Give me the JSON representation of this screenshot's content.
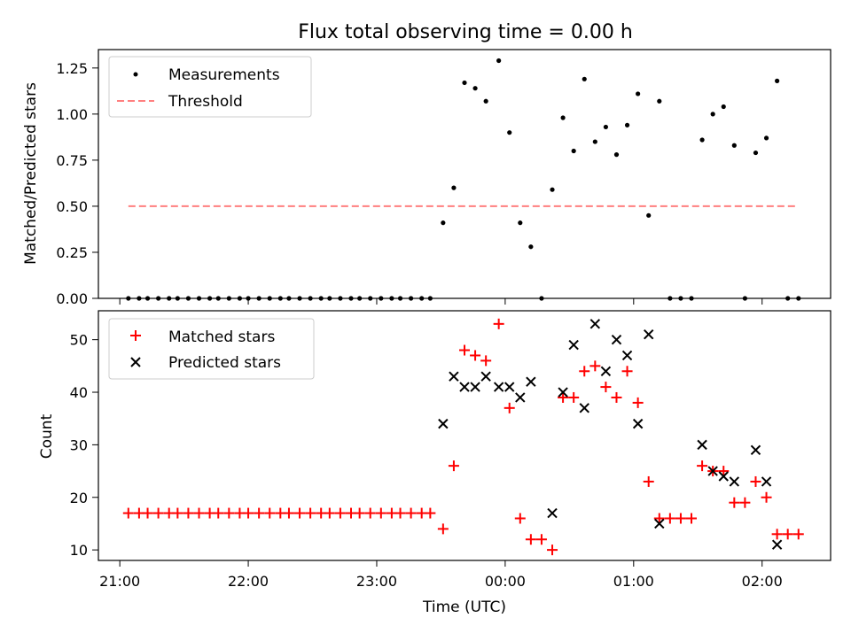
{
  "chart_data": [
    {
      "type": "scatter",
      "title": "Flux total observing time = 0.00 h",
      "xlabel": "",
      "ylabel": "Matched/Predicted stars",
      "xlim": [
        "20:50",
        "02:32"
      ],
      "ylim": [
        0,
        1.35
      ],
      "yticks": [
        "0.00",
        "0.25",
        "0.50",
        "0.75",
        "1.00",
        "1.25"
      ],
      "legend_position": "top-left",
      "series": [
        {
          "name": "Measurements",
          "style": "dots",
          "color": "#000000",
          "points": [
            [
              "21:04",
              0
            ],
            [
              "21:09",
              0
            ],
            [
              "21:13",
              0
            ],
            [
              "21:18",
              0
            ],
            [
              "21:23",
              0
            ],
            [
              "21:27",
              0
            ],
            [
              "21:32",
              0
            ],
            [
              "21:37",
              0
            ],
            [
              "21:42",
              0
            ],
            [
              "21:46",
              0
            ],
            [
              "21:51",
              0
            ],
            [
              "21:56",
              0
            ],
            [
              "22:00",
              0
            ],
            [
              "22:05",
              0
            ],
            [
              "22:10",
              0
            ],
            [
              "22:15",
              0
            ],
            [
              "22:19",
              0
            ],
            [
              "22:24",
              0
            ],
            [
              "22:29",
              0
            ],
            [
              "22:34",
              0
            ],
            [
              "22:38",
              0
            ],
            [
              "22:43",
              0
            ],
            [
              "22:48",
              0
            ],
            [
              "22:52",
              0
            ],
            [
              "22:57",
              0
            ],
            [
              "23:02",
              0
            ],
            [
              "23:07",
              0
            ],
            [
              "23:11",
              0
            ],
            [
              "23:16",
              0
            ],
            [
              "23:21",
              0
            ],
            [
              "23:25",
              0
            ],
            [
              "23:31",
              0.41
            ],
            [
              "23:36",
              0.6
            ],
            [
              "23:41",
              1.17
            ],
            [
              "23:46",
              1.14
            ],
            [
              "23:51",
              1.07
            ],
            [
              "23:57",
              1.29
            ],
            [
              "00:02",
              0.9
            ],
            [
              "00:07",
              0.41
            ],
            [
              "00:12",
              0.28
            ],
            [
              "00:17",
              0
            ],
            [
              "00:22",
              0.59
            ],
            [
              "00:27",
              0.98
            ],
            [
              "00:32",
              0.8
            ],
            [
              "00:37",
              1.19
            ],
            [
              "00:42",
              0.85
            ],
            [
              "00:47",
              0.93
            ],
            [
              "00:52",
              0.78
            ],
            [
              "00:57",
              0.94
            ],
            [
              "01:02",
              1.11
            ],
            [
              "01:07",
              0.45
            ],
            [
              "01:12",
              1.07
            ],
            [
              "01:17",
              0
            ],
            [
              "01:22",
              0
            ],
            [
              "01:27",
              0
            ],
            [
              "01:32",
              0.86
            ],
            [
              "01:37",
              1.0
            ],
            [
              "01:42",
              1.04
            ],
            [
              "01:47",
              0.83
            ],
            [
              "01:52",
              0
            ],
            [
              "01:57",
              0.79
            ],
            [
              "02:02",
              0.87
            ],
            [
              "02:07",
              1.18
            ],
            [
              "02:12",
              0
            ],
            [
              "02:17",
              0
            ]
          ]
        },
        {
          "name": "Threshold",
          "style": "dashed-line",
          "color": "#ff7f7f",
          "points": [
            [
              "21:04",
              0.5
            ],
            [
              "02:17",
              0.5
            ]
          ]
        }
      ]
    },
    {
      "type": "scatter",
      "xlabel": "Time (UTC)",
      "ylabel": "Count",
      "xlim": [
        "20:50",
        "02:32"
      ],
      "ylim": [
        8,
        55.5
      ],
      "yticks": [
        "10",
        "20",
        "30",
        "40",
        "50"
      ],
      "xticks": [
        "21:00",
        "22:00",
        "23:00",
        "00:00",
        "01:00",
        "02:00"
      ],
      "legend_position": "top-left",
      "series": [
        {
          "name": "Matched stars",
          "marker": "plus",
          "color": "#ff0000",
          "points": [
            [
              "21:04",
              17
            ],
            [
              "21:09",
              17
            ],
            [
              "21:13",
              17
            ],
            [
              "21:18",
              17
            ],
            [
              "21:23",
              17
            ],
            [
              "21:27",
              17
            ],
            [
              "21:32",
              17
            ],
            [
              "21:37",
              17
            ],
            [
              "21:42",
              17
            ],
            [
              "21:46",
              17
            ],
            [
              "21:51",
              17
            ],
            [
              "21:56",
              17
            ],
            [
              "22:00",
              17
            ],
            [
              "22:05",
              17
            ],
            [
              "22:10",
              17
            ],
            [
              "22:15",
              17
            ],
            [
              "22:19",
              17
            ],
            [
              "22:24",
              17
            ],
            [
              "22:29",
              17
            ],
            [
              "22:34",
              17
            ],
            [
              "22:38",
              17
            ],
            [
              "22:43",
              17
            ],
            [
              "22:48",
              17
            ],
            [
              "22:52",
              17
            ],
            [
              "22:57",
              17
            ],
            [
              "23:02",
              17
            ],
            [
              "23:07",
              17
            ],
            [
              "23:11",
              17
            ],
            [
              "23:16",
              17
            ],
            [
              "23:21",
              17
            ],
            [
              "23:25",
              17
            ],
            [
              "23:31",
              14
            ],
            [
              "23:36",
              26
            ],
            [
              "23:41",
              48
            ],
            [
              "23:46",
              47
            ],
            [
              "23:51",
              46
            ],
            [
              "23:57",
              53
            ],
            [
              "00:02",
              37
            ],
            [
              "00:07",
              16
            ],
            [
              "00:12",
              12
            ],
            [
              "00:17",
              12
            ],
            [
              "00:22",
              10
            ],
            [
              "00:27",
              39
            ],
            [
              "00:32",
              39
            ],
            [
              "00:37",
              44
            ],
            [
              "00:42",
              45
            ],
            [
              "00:47",
              41
            ],
            [
              "00:52",
              39
            ],
            [
              "00:57",
              44
            ],
            [
              "01:02",
              38
            ],
            [
              "01:07",
              23
            ],
            [
              "01:12",
              16
            ],
            [
              "01:17",
              16
            ],
            [
              "01:22",
              16
            ],
            [
              "01:27",
              16
            ],
            [
              "01:32",
              26
            ],
            [
              "01:37",
              25
            ],
            [
              "01:42",
              25
            ],
            [
              "01:47",
              19
            ],
            [
              "01:52",
              19
            ],
            [
              "01:57",
              23
            ],
            [
              "02:02",
              20
            ],
            [
              "02:07",
              13
            ],
            [
              "02:12",
              13
            ],
            [
              "02:17",
              13
            ]
          ]
        },
        {
          "name": "Predicted stars",
          "marker": "x",
          "color": "#000000",
          "points": [
            [
              "23:31",
              34
            ],
            [
              "23:36",
              43
            ],
            [
              "23:41",
              41
            ],
            [
              "23:46",
              41
            ],
            [
              "23:51",
              43
            ],
            [
              "23:57",
              41
            ],
            [
              "00:02",
              41
            ],
            [
              "00:07",
              39
            ],
            [
              "00:12",
              42
            ],
            [
              "00:22",
              17
            ],
            [
              "00:27",
              40
            ],
            [
              "00:32",
              49
            ],
            [
              "00:37",
              37
            ],
            [
              "00:42",
              53
            ],
            [
              "00:47",
              44
            ],
            [
              "00:52",
              50
            ],
            [
              "00:57",
              47
            ],
            [
              "01:02",
              34
            ],
            [
              "01:07",
              51
            ],
            [
              "01:12",
              15
            ],
            [
              "01:32",
              30
            ],
            [
              "01:37",
              25
            ],
            [
              "01:42",
              24
            ],
            [
              "01:47",
              23
            ],
            [
              "01:57",
              29
            ],
            [
              "02:02",
              23
            ],
            [
              "02:07",
              11
            ]
          ]
        }
      ]
    }
  ]
}
